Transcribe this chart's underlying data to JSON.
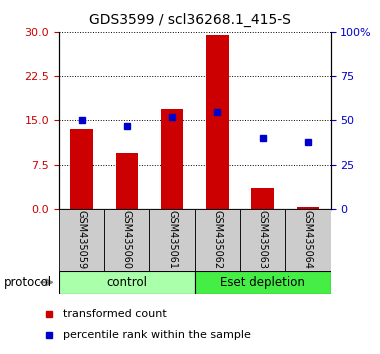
{
  "title": "GDS3599 / scl36268.1_415-S",
  "samples": [
    "GSM435059",
    "GSM435060",
    "GSM435061",
    "GSM435062",
    "GSM435063",
    "GSM435064"
  ],
  "transformed_counts": [
    13.5,
    9.5,
    17.0,
    29.5,
    3.5,
    0.3
  ],
  "percentile_ranks": [
    50.0,
    47.0,
    52.0,
    55.0,
    40.0,
    38.0
  ],
  "left_ylim": [
    0,
    30
  ],
  "right_ylim": [
    0,
    100
  ],
  "left_yticks": [
    0,
    7.5,
    15,
    22.5,
    30
  ],
  "right_yticks": [
    0,
    25,
    50,
    75,
    100
  ],
  "right_yticklabels": [
    "0",
    "25",
    "50",
    "75",
    "100%"
  ],
  "bar_color": "#cc0000",
  "marker_color": "#0000cc",
  "groups": [
    {
      "label": "control",
      "indices": [
        0,
        1,
        2
      ],
      "color": "#aaffaa"
    },
    {
      "label": "Eset depletion",
      "indices": [
        3,
        4,
        5
      ],
      "color": "#44ee44"
    }
  ],
  "protocol_label": "protocol",
  "legend_items": [
    {
      "label": "transformed count",
      "color": "#cc0000"
    },
    {
      "label": "percentile rank within the sample",
      "color": "#0000cc"
    }
  ],
  "grid_color": "#000000",
  "sample_area_color": "#cccccc",
  "title_fontsize": 10,
  "tick_fontsize": 8,
  "label_fontsize": 7,
  "legend_fontsize": 8
}
